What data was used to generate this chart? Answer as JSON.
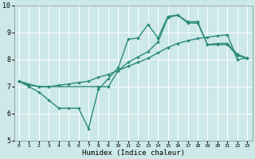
{
  "title": "",
  "xlabel": "Humidex (Indice chaleur)",
  "ylabel": "",
  "xlim": [
    -0.5,
    23.5
  ],
  "ylim": [
    5,
    10
  ],
  "yticks": [
    5,
    6,
    7,
    8,
    9,
    10
  ],
  "xticks": [
    0,
    1,
    2,
    3,
    4,
    5,
    6,
    7,
    8,
    9,
    10,
    11,
    12,
    13,
    14,
    15,
    16,
    17,
    18,
    19,
    20,
    21,
    22,
    23
  ],
  "bg_color": "#cce8e8",
  "grid_color": "#ffffff",
  "line_color": "#2a8a7a",
  "line1_x": [
    0,
    1,
    2,
    3,
    4,
    5,
    6,
    7,
    8,
    9,
    10,
    11,
    12,
    13,
    14,
    15,
    16,
    17,
    18,
    19,
    20,
    21,
    22,
    23
  ],
  "line1_y": [
    7.2,
    7.0,
    6.8,
    6.5,
    6.2,
    6.2,
    6.2,
    5.45,
    6.9,
    7.3,
    7.7,
    8.75,
    8.8,
    9.3,
    8.8,
    9.6,
    9.65,
    9.4,
    9.4,
    8.55,
    8.55,
    8.55,
    8.15,
    8.05
  ],
  "line2_x": [
    0,
    2,
    3,
    8,
    9,
    10,
    11,
    12,
    13,
    14,
    15,
    16,
    17,
    18,
    19,
    20,
    21,
    22,
    23
  ],
  "line2_y": [
    7.2,
    7.0,
    7.0,
    7.0,
    7.0,
    7.6,
    7.9,
    8.1,
    8.3,
    8.65,
    9.55,
    9.65,
    9.35,
    9.35,
    8.55,
    8.6,
    8.6,
    8.2,
    8.05
  ],
  "line3_x": [
    0,
    1,
    2,
    3,
    4,
    5,
    6,
    7,
    8,
    9,
    10,
    11,
    12,
    13,
    14,
    15,
    16,
    17,
    18,
    19,
    20,
    21,
    22,
    23
  ],
  "line3_y": [
    7.2,
    7.05,
    7.0,
    7.0,
    7.05,
    7.1,
    7.15,
    7.2,
    7.35,
    7.45,
    7.6,
    7.75,
    7.9,
    8.05,
    8.25,
    8.45,
    8.6,
    8.7,
    8.78,
    8.83,
    8.88,
    8.92,
    8.0,
    8.05
  ]
}
